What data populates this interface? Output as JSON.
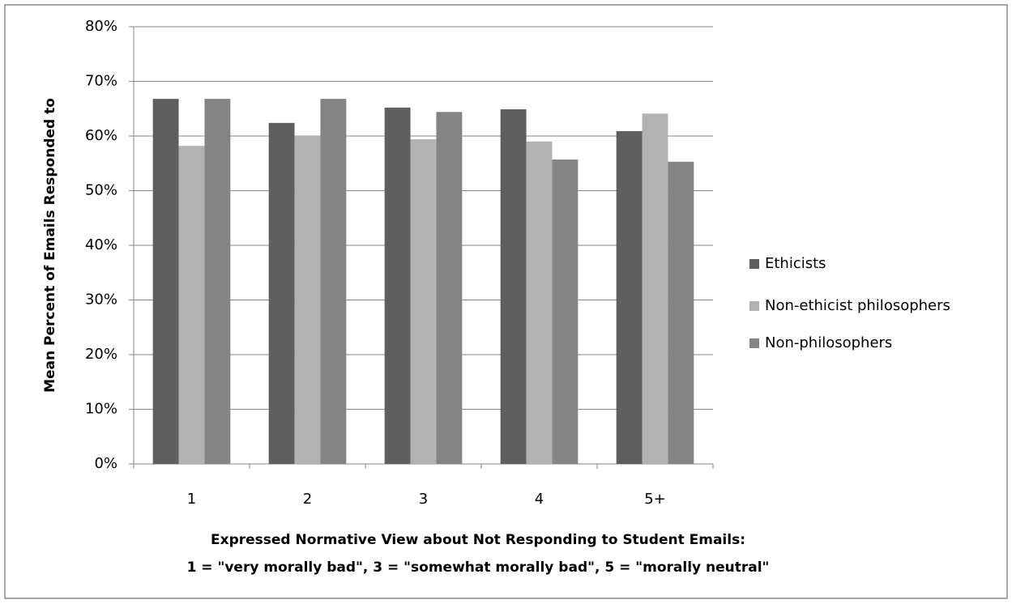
{
  "chart_data": {
    "type": "bar",
    "y_label": "Mean Percent of Emails Responded to",
    "x_label_lines": [
      "Expressed Normative View about Not Responding to Student Emails:",
      "1 = \"very morally bad\", 3 = \"somewhat morally bad\", 5 = \"morally neutral\""
    ],
    "categories": [
      "1",
      "2",
      "3",
      "4",
      "5+"
    ],
    "series": [
      {
        "name": "Ethicists",
        "color": "#5f5f5f",
        "values": [
          66.8,
          62.4,
          65.2,
          64.9,
          60.9
        ]
      },
      {
        "name": "Non-ethicist philosophers",
        "color": "#b2b2b2",
        "values": [
          58.2,
          60.1,
          59.4,
          59.0,
          64.1
        ]
      },
      {
        "name": "Non-philosophers",
        "color": "#848484",
        "values": [
          66.8,
          66.8,
          64.4,
          55.7,
          55.3
        ]
      }
    ],
    "ylim": [
      0,
      80
    ],
    "yticks": [
      {
        "value": 0,
        "label": "0%"
      },
      {
        "value": 10,
        "label": "10%"
      },
      {
        "value": 20,
        "label": "20%"
      },
      {
        "value": 30,
        "label": "30%"
      },
      {
        "value": 40,
        "label": "40%"
      },
      {
        "value": 50,
        "label": "50%"
      },
      {
        "value": 60,
        "label": "60%"
      },
      {
        "value": 70,
        "label": "70%"
      },
      {
        "value": 80,
        "label": "80%"
      }
    ],
    "grid": true,
    "legend": "right"
  }
}
